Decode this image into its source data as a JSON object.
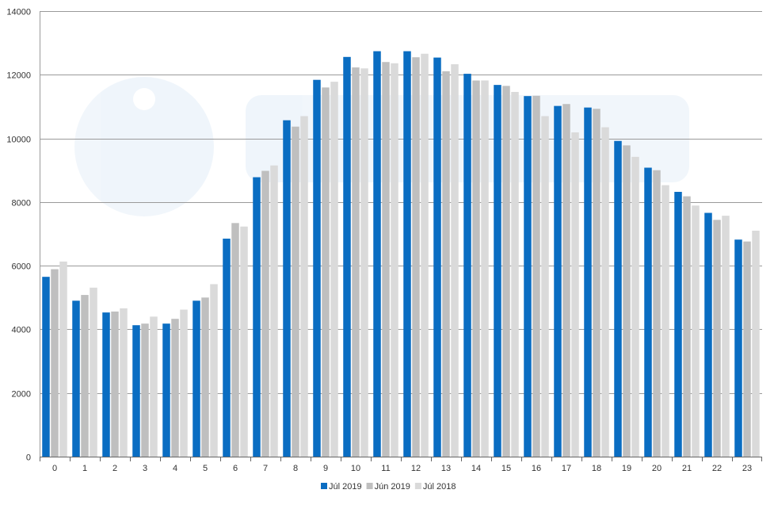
{
  "chart_data": {
    "type": "bar",
    "title": "",
    "xlabel": "",
    "ylabel": "",
    "ylim": [
      0,
      14000
    ],
    "y_ticks": [
      0,
      2000,
      4000,
      6000,
      8000,
      10000,
      12000,
      14000
    ],
    "y_tick_labels": [
      "0",
      "2000",
      "4000",
      "6000",
      "8000",
      "10000",
      "12000",
      "14000"
    ],
    "grid": true,
    "legend_position": "bottom-center",
    "categories": [
      "0",
      "1",
      "2",
      "3",
      "4",
      "5",
      "6",
      "7",
      "8",
      "9",
      "10",
      "11",
      "12",
      "13",
      "14",
      "15",
      "16",
      "17",
      "18",
      "19",
      "20",
      "21",
      "22",
      "23"
    ],
    "series": [
      {
        "name": "Júl 2019",
        "color": "#0a6dc2",
        "values": [
          5650,
          4900,
          4530,
          4130,
          4180,
          4900,
          6850,
          8780,
          10570,
          11840,
          12560,
          12740,
          12740,
          12540,
          12030,
          11680,
          11330,
          11020,
          10970,
          9920,
          9080,
          8320,
          7660,
          6820
        ]
      },
      {
        "name": "Jún 2019",
        "color": "#bfbfbf",
        "values": [
          5890,
          5080,
          4560,
          4180,
          4330,
          5000,
          7340,
          8980,
          10370,
          11600,
          12230,
          12400,
          12550,
          12110,
          11820,
          11650,
          11340,
          11080,
          10930,
          9780,
          9000,
          8180,
          7440,
          6760
        ]
      },
      {
        "name": "Júl 2018",
        "color": "#dadada",
        "values": [
          6130,
          5310,
          4660,
          4400,
          4620,
          5420,
          7230,
          9150,
          10700,
          11780,
          12200,
          12360,
          12660,
          12330,
          11820,
          11460,
          10700,
          10190,
          10350,
          9420,
          8530,
          7890,
          7570,
          7100
        ]
      }
    ]
  }
}
